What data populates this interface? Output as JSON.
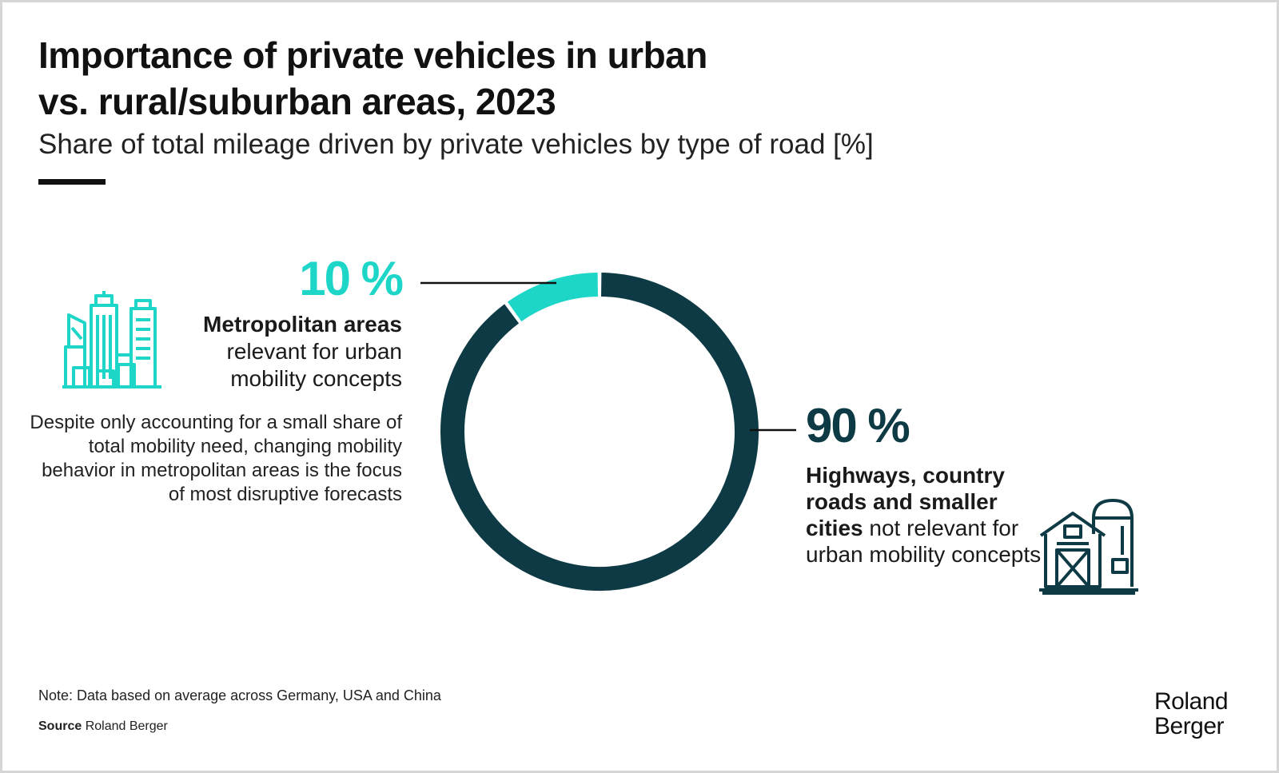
{
  "title_line1": "Importance of private vehicles in urban",
  "title_line2": "vs. rural/suburban areas, 2023",
  "subtitle": "Share of total mileage driven by private vehicles by type of road [%]",
  "urban": {
    "percent_label": "10 %",
    "label_bold": "Metropolitan areas",
    "label_rest": "relevant for urban mobility concepts",
    "note": "Despite only accounting for a small share of total mobility need, changing mobility behavior in metropolitan areas is the focus of most disruptive forecasts",
    "icon": "city-skyline-icon"
  },
  "rural": {
    "percent_label": "90 %",
    "label_bold": "Highways, country roads and smaller cities",
    "label_rest": "not relevant for urban mobility concepts",
    "icon": "farm-barn-icon"
  },
  "footnote": "Note: Data based on average across Germany, USA and China",
  "source_label": "Source",
  "source_value": "Roland Berger",
  "logo_line1": "Roland",
  "logo_line2": "Berger",
  "chart_data": {
    "type": "pie",
    "title": "Importance of private vehicles in urban vs. rural/suburban areas, 2023",
    "subtitle": "Share of total mileage driven by private vehicles by type of road [%]",
    "style": "donut",
    "categories": [
      "Metropolitan areas",
      "Highways, country roads and smaller cities"
    ],
    "values": [
      10,
      90
    ],
    "colors": [
      "#1ed6c8",
      "#0d3a44"
    ]
  },
  "colors": {
    "urban": "#1ed6c8",
    "rural": "#0d3a44",
    "text": "#1a1a1a"
  }
}
